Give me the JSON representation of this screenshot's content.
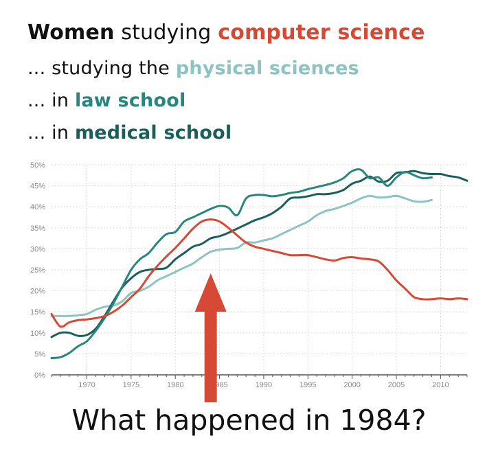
{
  "headline": {
    "line1_prefix": "Women",
    "line1_mid": " studying ",
    "line1_key": "computer science",
    "line2_prefix": "... studying the ",
    "line2_key": "physical sciences",
    "line3_prefix": "... in ",
    "line3_key": "law school",
    "line4_prefix": "... in ",
    "line4_key": "medical school"
  },
  "question": "What happened in 1984?",
  "colors": {
    "computer_science": "#d64a35",
    "physical_sciences": "#8dc3c1",
    "law_school": "#27877f",
    "medical_school": "#1b5f5a",
    "arrow": "#d64a35",
    "grid": "#cfcfcf",
    "axis_text": "#888888"
  },
  "chart_data": {
    "type": "line",
    "xlim": [
      1966,
      2013
    ],
    "ylim": [
      0,
      50
    ],
    "x_ticks": [
      1970,
      1975,
      1980,
      1985,
      1990,
      1995,
      2000,
      2005,
      2010
    ],
    "x_tick_labels": [
      "1970",
      "1975",
      "1980",
      "1985",
      "1990",
      "1995",
      "2000",
      "2005",
      "2010"
    ],
    "y_ticks": [
      0,
      5,
      10,
      15,
      20,
      25,
      30,
      35,
      40,
      45,
      50
    ],
    "y_tick_labels": [
      "0%",
      "5%",
      "10%",
      "15%",
      "20%",
      "25%",
      "30%",
      "35%",
      "40%",
      "45%",
      "50%"
    ],
    "grid": true,
    "annotation": {
      "type": "arrow",
      "x": 1984
    },
    "series": [
      {
        "name": "computer science",
        "key": "computer_science",
        "points": [
          [
            1966,
            14.5
          ],
          [
            1967,
            11.5
          ],
          [
            1968,
            12.5
          ],
          [
            1969,
            13
          ],
          [
            1970,
            13.2
          ],
          [
            1971,
            13.5
          ],
          [
            1972,
            14
          ],
          [
            1973,
            15
          ],
          [
            1974,
            16.5
          ],
          [
            1975,
            18.5
          ],
          [
            1976,
            20.5
          ],
          [
            1977,
            23.5
          ],
          [
            1978,
            26
          ],
          [
            1979,
            28.2
          ],
          [
            1980,
            30.2
          ],
          [
            1981,
            32.5
          ],
          [
            1982,
            34.8
          ],
          [
            1983,
            36.5
          ],
          [
            1984,
            37
          ],
          [
            1985,
            36.5
          ],
          [
            1986,
            35
          ],
          [
            1987,
            33.2
          ],
          [
            1988,
            31.5
          ],
          [
            1989,
            30.5
          ],
          [
            1990,
            30
          ],
          [
            1991,
            29.5
          ],
          [
            1992,
            29
          ],
          [
            1993,
            28.5
          ],
          [
            1994,
            28.5
          ],
          [
            1995,
            28.5
          ],
          [
            1996,
            28
          ],
          [
            1997,
            27.5
          ],
          [
            1998,
            27.2
          ],
          [
            1999,
            27.8
          ],
          [
            2000,
            28
          ],
          [
            2001,
            27.7
          ],
          [
            2002,
            27.5
          ],
          [
            2003,
            27
          ],
          [
            2004,
            25
          ],
          [
            2005,
            22.5
          ],
          [
            2006,
            20.5
          ],
          [
            2007,
            18.5
          ],
          [
            2008,
            18
          ],
          [
            2009,
            18
          ],
          [
            2010,
            18.2
          ],
          [
            2011,
            18
          ],
          [
            2012,
            18.2
          ],
          [
            2013,
            18
          ]
        ]
      },
      {
        "name": "physical sciences",
        "key": "physical_sciences",
        "points": [
          [
            1966,
            14
          ],
          [
            1967,
            14
          ],
          [
            1968,
            14
          ],
          [
            1969,
            14.2
          ],
          [
            1970,
            14.5
          ],
          [
            1971,
            15.5
          ],
          [
            1972,
            16.2
          ],
          [
            1973,
            16.5
          ],
          [
            1974,
            17.5
          ],
          [
            1975,
            19.5
          ],
          [
            1976,
            20
          ],
          [
            1977,
            21
          ],
          [
            1978,
            22.5
          ],
          [
            1979,
            23.5
          ],
          [
            1980,
            24.5
          ],
          [
            1981,
            25.5
          ],
          [
            1982,
            26.5
          ],
          [
            1983,
            28
          ],
          [
            1984,
            29.3
          ],
          [
            1985,
            29.8
          ],
          [
            1986,
            30
          ],
          [
            1987,
            30.2
          ],
          [
            1988,
            31.5
          ],
          [
            1989,
            31.5
          ],
          [
            1990,
            32
          ],
          [
            1991,
            32.5
          ],
          [
            1992,
            33.5
          ],
          [
            1993,
            34.5
          ],
          [
            1994,
            35.5
          ],
          [
            1995,
            36.5
          ],
          [
            1996,
            38
          ],
          [
            1997,
            39
          ],
          [
            1998,
            39.5
          ],
          [
            1999,
            40.2
          ],
          [
            2000,
            41
          ],
          [
            2001,
            42
          ],
          [
            2002,
            42.6
          ],
          [
            2003,
            42.2
          ],
          [
            2004,
            42.3
          ],
          [
            2005,
            42.6
          ],
          [
            2006,
            42
          ],
          [
            2007,
            41.3
          ],
          [
            2008,
            41.2
          ],
          [
            2009,
            41.6
          ]
        ]
      },
      {
        "name": "law school",
        "key": "law_school",
        "points": [
          [
            1966,
            4
          ],
          [
            1967,
            4.2
          ],
          [
            1968,
            5.2
          ],
          [
            1969,
            6.8
          ],
          [
            1970,
            8
          ],
          [
            1971,
            10.5
          ],
          [
            1972,
            13.5
          ],
          [
            1973,
            17
          ],
          [
            1974,
            21
          ],
          [
            1975,
            25
          ],
          [
            1976,
            27.5
          ],
          [
            1977,
            29
          ],
          [
            1978,
            31.5
          ],
          [
            1979,
            33.5
          ],
          [
            1980,
            34
          ],
          [
            1981,
            36.5
          ],
          [
            1982,
            37.5
          ],
          [
            1983,
            38.5
          ],
          [
            1984,
            39.5
          ],
          [
            1985,
            40.2
          ],
          [
            1986,
            39.8
          ],
          [
            1987,
            38
          ],
          [
            1988,
            42
          ],
          [
            1989,
            42.8
          ],
          [
            1990,
            42.8
          ],
          [
            1991,
            42.5
          ],
          [
            1992,
            42.8
          ],
          [
            1993,
            43.3
          ],
          [
            1994,
            43.6
          ],
          [
            1995,
            44.2
          ],
          [
            1996,
            44.7
          ],
          [
            1997,
            45.2
          ],
          [
            1998,
            45.8
          ],
          [
            1999,
            46.8
          ],
          [
            2000,
            48.5
          ],
          [
            2001,
            48.8
          ],
          [
            2002,
            46.8
          ],
          [
            2003,
            47
          ],
          [
            2004,
            45
          ],
          [
            2005,
            47
          ],
          [
            2006,
            48.3
          ],
          [
            2007,
            47.5
          ],
          [
            2008,
            46.8
          ],
          [
            2009,
            47
          ]
        ]
      },
      {
        "name": "medical school",
        "key": "medical_school",
        "points": [
          [
            1966,
            9
          ],
          [
            1967,
            10
          ],
          [
            1968,
            10
          ],
          [
            1969,
            9.3
          ],
          [
            1970,
            9.5
          ],
          [
            1971,
            11
          ],
          [
            1972,
            14
          ],
          [
            1973,
            17.5
          ],
          [
            1974,
            20.8
          ],
          [
            1975,
            23
          ],
          [
            1976,
            24.5
          ],
          [
            1977,
            25
          ],
          [
            1978,
            25.2
          ],
          [
            1979,
            25.5
          ],
          [
            1980,
            27.5
          ],
          [
            1981,
            29
          ],
          [
            1982,
            30.5
          ],
          [
            1983,
            31.2
          ],
          [
            1984,
            32.5
          ],
          [
            1985,
            33
          ],
          [
            1986,
            33.8
          ],
          [
            1987,
            34.8
          ],
          [
            1988,
            35.8
          ],
          [
            1989,
            36.8
          ],
          [
            1990,
            37.5
          ],
          [
            1991,
            38.5
          ],
          [
            1992,
            40
          ],
          [
            1993,
            42
          ],
          [
            1994,
            42.2
          ],
          [
            1995,
            42.5
          ],
          [
            1996,
            43
          ],
          [
            1997,
            43
          ],
          [
            1998,
            43.3
          ],
          [
            1999,
            44
          ],
          [
            2000,
            45.5
          ],
          [
            2001,
            46.2
          ],
          [
            2002,
            47.2
          ],
          [
            2003,
            46
          ],
          [
            2004,
            46.2
          ],
          [
            2005,
            48
          ],
          [
            2006,
            48.2
          ],
          [
            2007,
            48.5
          ],
          [
            2008,
            48
          ],
          [
            2009,
            47.8
          ],
          [
            2010,
            47.8
          ],
          [
            2011,
            47.3
          ],
          [
            2012,
            47
          ],
          [
            2013,
            46.2
          ]
        ]
      }
    ]
  }
}
